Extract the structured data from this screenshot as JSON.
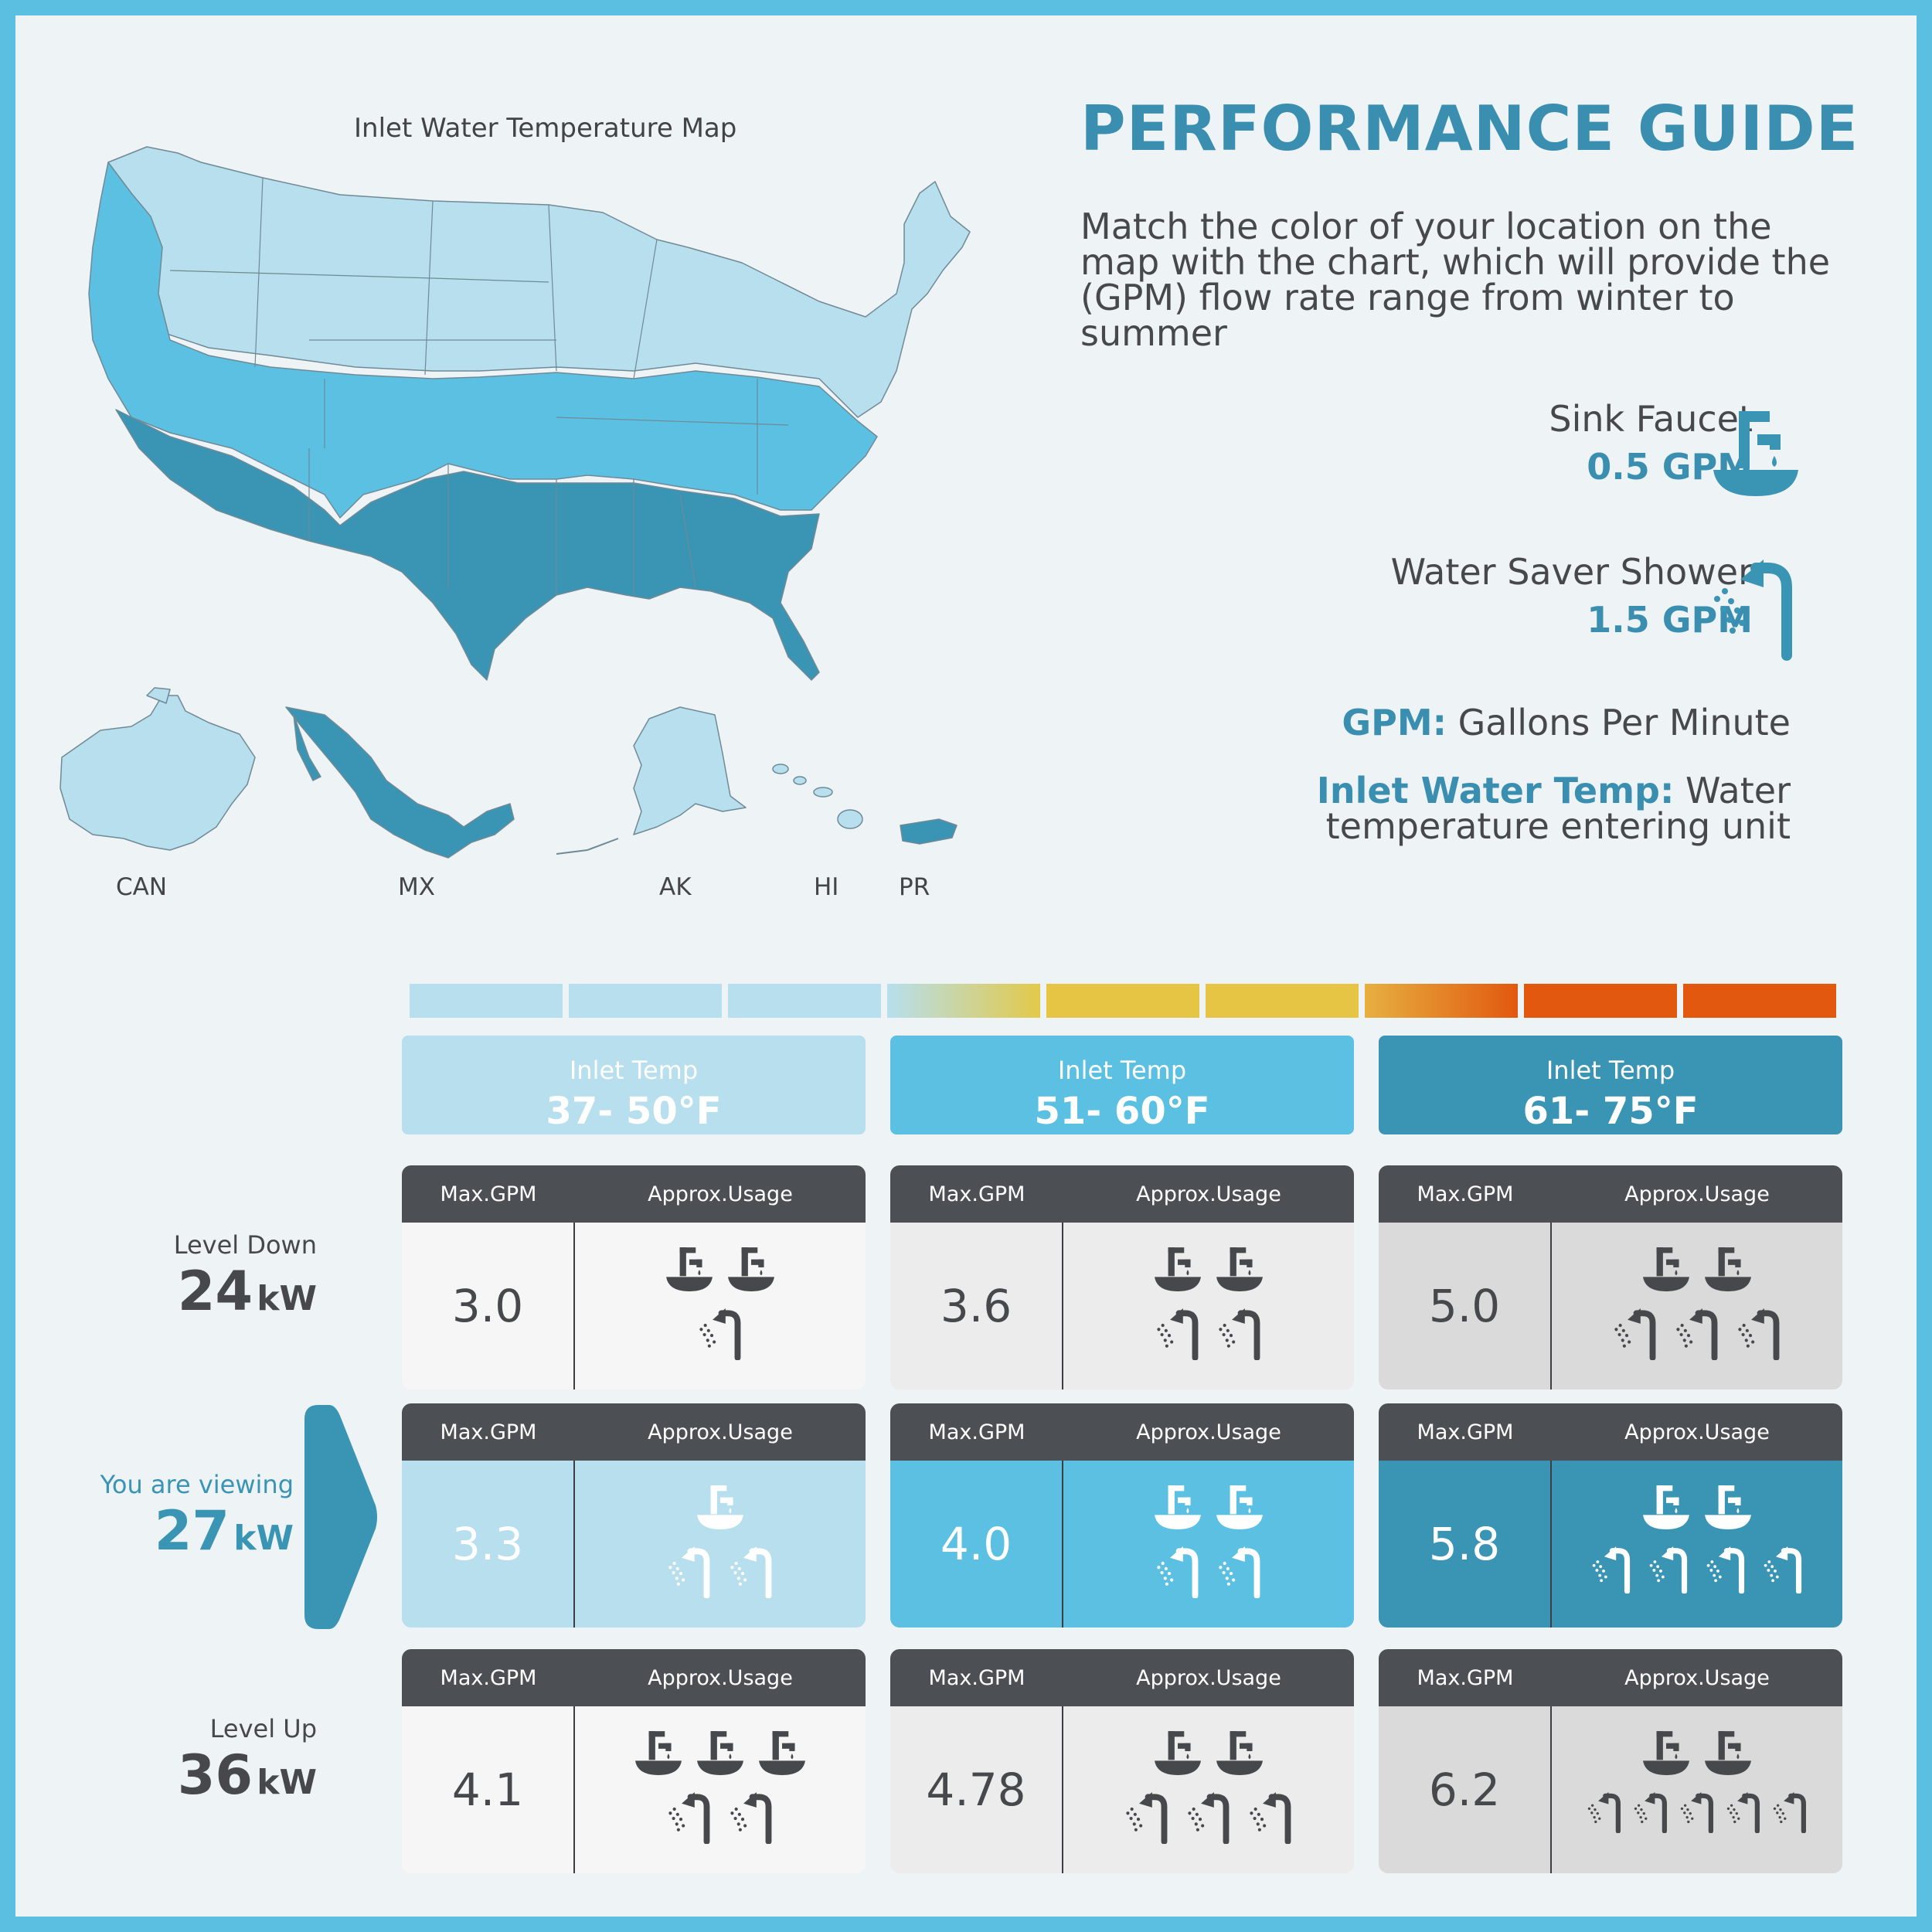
{
  "map": {
    "title": "Inlet Water Temperature Map",
    "labels": {
      "can": "CAN",
      "mx": "MX",
      "ak": "AK",
      "hi": "HI",
      "pr": "PR"
    }
  },
  "guide": {
    "title": "PERFORMANCE GUIDE",
    "description": "Match the color of your location on the map with the chart, which will provide the (GPM) flow rate range from winter to summer",
    "sink": {
      "label": "Sink Faucet",
      "rate": "0.5 GPM",
      "icon": "sink-faucet-icon"
    },
    "shower": {
      "label": "Water Saver Shower",
      "rate": "1.5 GPM",
      "icon": "shower-icon"
    },
    "gpm_term": "GPM:",
    "gpm_def": "Gallons Per Minute",
    "inlet_term": "Inlet Water Temp:",
    "inlet_def_1": "Water",
    "inlet_def_2": "temperature entering unit"
  },
  "colors": {
    "cold": "#b7dfee",
    "mild": "#5bc0e2",
    "warm": "#3a94b4",
    "dark_header": "#4c5054",
    "text": "#46484b",
    "accent": "#3a8fb1"
  },
  "columns": [
    {
      "label": "Inlet Temp",
      "range": "37- 50°F"
    },
    {
      "label": "Inlet Temp",
      "range": "51- 60°F"
    },
    {
      "label": "Inlet Temp",
      "range": "61- 75°F"
    }
  ],
  "table_headers": {
    "max": "Max.GPM",
    "usage": "Approx.Usage"
  },
  "rows": [
    {
      "label": "Level Down",
      "kw": "24",
      "unit": "kW",
      "cells": [
        {
          "gpm": "3.0",
          "sinks": 2,
          "showers": 1
        },
        {
          "gpm": "3.6",
          "sinks": 2,
          "showers": 2
        },
        {
          "gpm": "5.0",
          "sinks": 2,
          "showers": 3
        }
      ]
    },
    {
      "label": "You are viewing",
      "kw": "27",
      "unit": "kW",
      "cells": [
        {
          "gpm": "3.3",
          "sinks": 1,
          "showers": 2
        },
        {
          "gpm": "4.0",
          "sinks": 2,
          "showers": 2
        },
        {
          "gpm": "5.8",
          "sinks": 2,
          "showers": 4
        }
      ]
    },
    {
      "label": "Level Up",
      "kw": "36",
      "unit": "kW",
      "cells": [
        {
          "gpm": "4.1",
          "sinks": 3,
          "showers": 2
        },
        {
          "gpm": "4.78",
          "sinks": 2,
          "showers": 3
        },
        {
          "gpm": "6.2",
          "sinks": 2,
          "showers": 5
        }
      ]
    }
  ]
}
